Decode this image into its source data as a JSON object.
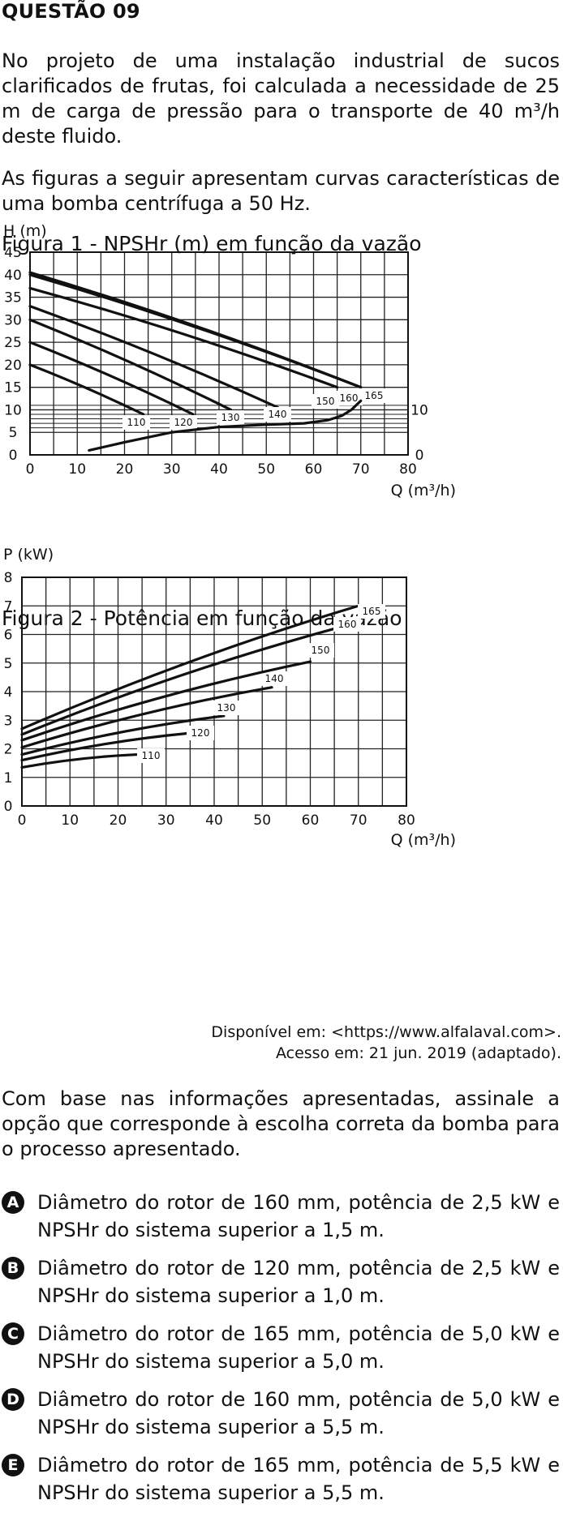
{
  "question": {
    "title": "QUESTÃO 09",
    "paragraph1": "No projeto de uma instalação industrial de sucos clarificados de frutas, foi calculada a necessidade de 25 m de carga de pressão para o transporte de 40 m³/h deste fluido.",
    "paragraph2": "As figuras a seguir apresentam curvas características de uma bomba centrífuga a 50 Hz.",
    "prompt": "Com base nas informações apresentadas, assinale a opção que corresponde à escolha correta da bomba para o processo apresentado.",
    "source_line1": "Disponível em: <https://www.alfalaval.com>.",
    "source_line2": "Acesso em: 21 jun. 2019 (adaptado).",
    "options": [
      {
        "letter": "A",
        "text": "Diâmetro do rotor de 160 mm, potência de 2,5 kW e NPSHr do sistema superior a 1,5 m."
      },
      {
        "letter": "B",
        "text": "Diâmetro do rotor de 120 mm, potência de 2,5 kW e NPSHr do sistema superior a 1,0 m."
      },
      {
        "letter": "C",
        "text": "Diâmetro do rotor de 165 mm, potência de 5,0 kW e NPSHr do sistema superior a 5,0 m."
      },
      {
        "letter": "D",
        "text": "Diâmetro do rotor de 160 mm, potência de 5,0 kW e NPSHr do sistema superior a 5,5 m."
      },
      {
        "letter": "E",
        "text": "Diâmetro do rotor de 165 mm, potência de 5,5 kW e NPSHr do sistema superior a 5,5 m."
      }
    ]
  },
  "chart_data": [
    {
      "type": "line",
      "title": "Figura 1 - NPSHr (m) em função da vazão",
      "ylabel": "H (m)",
      "xlabel": "Q (m³/h)",
      "xlim": [
        0,
        80
      ],
      "ylim": [
        0,
        45
      ],
      "xticks": [
        "0",
        "10",
        "20",
        "30",
        "40",
        "50",
        "60",
        "70",
        "80"
      ],
      "yticks": [
        "0",
        "5",
        "10",
        "15",
        "20",
        "25",
        "30",
        "35",
        "40",
        "45"
      ],
      "right_axis_ticks": [
        "0",
        "10"
      ],
      "grid": true,
      "series": [
        {
          "name": "110",
          "x": [
            0,
            24
          ],
          "y": [
            20,
            9
          ]
        },
        {
          "name": "120",
          "x": [
            0,
            34.5
          ],
          "y": [
            25,
            9
          ]
        },
        {
          "name": "130",
          "x": [
            0,
            42.5
          ],
          "y": [
            30,
            10
          ]
        },
        {
          "name": "140",
          "x": [
            0,
            52.5
          ],
          "y": [
            33,
            10.5
          ]
        },
        {
          "name": "150",
          "x": [
            0,
            65
          ],
          "y": [
            37,
            15
          ]
        },
        {
          "name": "160",
          "x": [
            0,
            70
          ],
          "y": [
            40,
            15
          ]
        },
        {
          "name": "165",
          "x": [
            0,
            70
          ],
          "y": [
            40.5,
            15
          ]
        },
        {
          "name": "NPSHr",
          "x": [
            12.5,
            20,
            30,
            40,
            50,
            58,
            63,
            66,
            68,
            70
          ],
          "y": [
            1,
            2.8,
            5,
            6.2,
            6.7,
            7,
            7.7,
            8.7,
            10,
            12
          ]
        }
      ]
    },
    {
      "type": "line",
      "title": "Figura 2 - Potência em função da vazão",
      "ylabel": "P (kW)",
      "xlabel": "Q (m³/h)",
      "xlim": [
        0,
        80
      ],
      "ylim": [
        0,
        8
      ],
      "xticks": [
        "0",
        "10",
        "20",
        "30",
        "40",
        "50",
        "60",
        "70",
        "80"
      ],
      "yticks": [
        "0",
        "1",
        "2",
        "3",
        "4",
        "5",
        "6",
        "7",
        "8"
      ],
      "grid": true,
      "series": [
        {
          "name": "110",
          "x": [
            0,
            24
          ],
          "y": [
            1.35,
            1.8
          ]
        },
        {
          "name": "120",
          "x": [
            0,
            35
          ],
          "y": [
            1.6,
            2.55
          ]
        },
        {
          "name": "130",
          "x": [
            0,
            42
          ],
          "y": [
            1.8,
            3.15
          ]
        },
        {
          "name": "140",
          "x": [
            0,
            52
          ],
          "y": [
            2.05,
            4.15
          ]
        },
        {
          "name": "150",
          "x": [
            0,
            60
          ],
          "y": [
            2.3,
            5.05
          ]
        },
        {
          "name": "160",
          "x": [
            0,
            65
          ],
          "y": [
            2.5,
            6.2
          ]
        },
        {
          "name": "165",
          "x": [
            0,
            70
          ],
          "y": [
            2.7,
            7.0
          ]
        }
      ]
    }
  ]
}
